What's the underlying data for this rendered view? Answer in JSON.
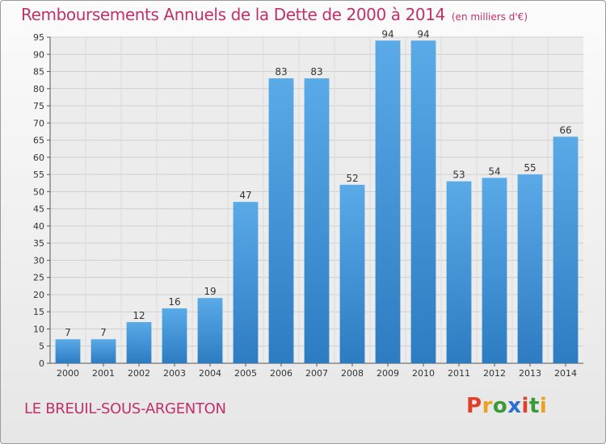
{
  "header": {
    "title": "Remboursements Annuels de la Dette de 2000 à 2014",
    "unit": "(en milliers d'€)"
  },
  "footer": {
    "commune": "LE BREUIL-SOUS-ARGENTON",
    "brand": "Proxiti"
  },
  "colors": {
    "title": "#c0306a",
    "bar_light": "#5aaae8",
    "bar_dark": "#2d7cc2",
    "brand_letters": [
      "#e0402a",
      "#f0a020",
      "#3a9a3a",
      "#2a6ecf",
      "#e0402a",
      "#3a9a3a",
      "#f0a020"
    ]
  },
  "chart_data": {
    "type": "bar",
    "categories": [
      "2000",
      "2001",
      "2002",
      "2003",
      "2004",
      "2005",
      "2006",
      "2007",
      "2008",
      "2009",
      "2010",
      "2011",
      "2012",
      "2013",
      "2014"
    ],
    "values": [
      7,
      7,
      12,
      16,
      19,
      47,
      83,
      83,
      52,
      94,
      94,
      53,
      54,
      55,
      66
    ],
    "ylim": [
      0,
      95
    ],
    "yticks": [
      0,
      5,
      10,
      15,
      20,
      25,
      30,
      35,
      40,
      45,
      50,
      55,
      60,
      65,
      70,
      75,
      80,
      85,
      90,
      95
    ],
    "grid": true,
    "data_labels": true
  }
}
